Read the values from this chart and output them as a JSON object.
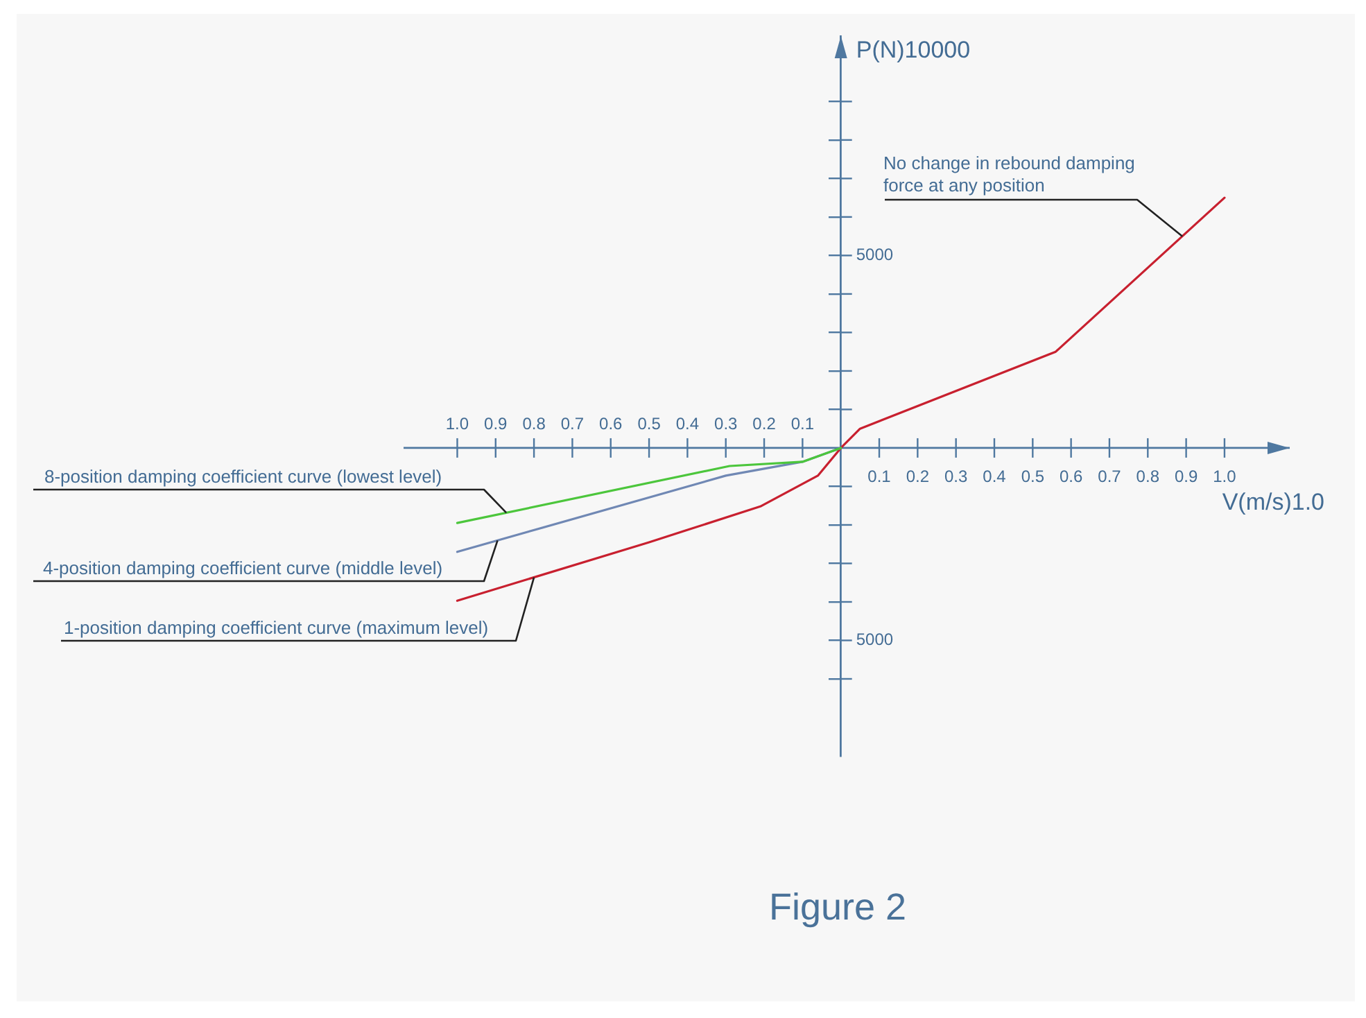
{
  "chart_data": {
    "type": "line",
    "title": "Figure 2",
    "xlabel": "V(m/s)1.0",
    "ylabel": "P(N)10000",
    "marker": "none",
    "xlim": [
      -1.14,
      1.17
    ],
    "ylim": [
      -8000,
      10700
    ],
    "x2lim": [
      1.14,
      -1.17
    ],
    "xticks": [
      0.1,
      0.2,
      0.3,
      0.4,
      0.5,
      0.6,
      0.7,
      0.8,
      0.9,
      {
        "value": 1.0,
        "label": "1.0"
      }
    ],
    "x2ticks": [
      {
        "value": 1.0,
        "label": "1.0"
      },
      0.9,
      0.8,
      0.7,
      0.6,
      0.5,
      0.4,
      0.3,
      0.2,
      0.1
    ],
    "yticks": [
      {
        "value": -6000,
        "label": null
      },
      {
        "value": -5000,
        "label": "5000"
      },
      {
        "value": -4000,
        "label": null
      },
      {
        "value": -3000,
        "label": null
      },
      {
        "value": -2000,
        "label": null
      },
      {
        "value": -1000,
        "label": null
      },
      {
        "value": 1000,
        "label": null
      },
      {
        "value": 2000,
        "label": null
      },
      {
        "value": 3000,
        "label": null
      },
      {
        "value": 4000,
        "label": null
      },
      5000,
      {
        "value": 6000,
        "label": null
      },
      {
        "value": 7000,
        "label": null
      },
      {
        "value": 8000,
        "label": null
      },
      {
        "value": 9000,
        "label": null
      }
    ],
    "series": [
      {
        "name": "8-position damping coefficient curve (lowest level)",
        "color": "#4cc63c",
        "x": [
          -1.0,
          -0.29,
          -0.1,
          0
        ],
        "values": [
          -1950,
          -470,
          -360,
          0
        ]
      },
      {
        "name": "4-position damping coefficient curve (middle level)",
        "color": "#7088b4",
        "x": [
          -1.0,
          -0.3,
          -0.1,
          0
        ],
        "values": [
          -2700,
          -720,
          -360,
          0
        ]
      },
      {
        "name": "1-position damping coefficient curve (maximum level)",
        "color": "#c8202f",
        "x": [
          -1.0,
          -0.5,
          -0.21,
          -0.06,
          0,
          0.05,
          0.56,
          1.0
        ],
        "values": [
          -3970,
          -2450,
          -1520,
          -720,
          0,
          500,
          2500,
          6500
        ]
      }
    ],
    "annotations": [
      {
        "text": "No change in rebound damping force at any position",
        "x": 0.89,
        "y": 5500
      }
    ]
  }
}
